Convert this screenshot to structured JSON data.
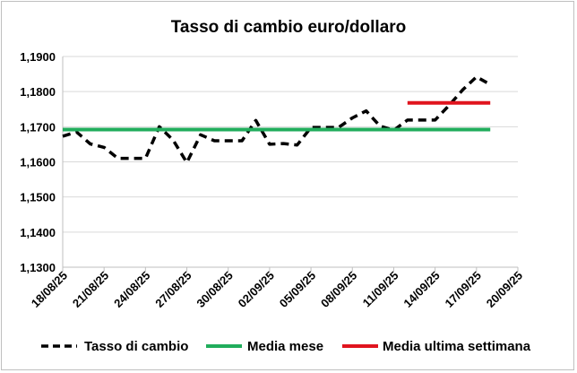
{
  "chart_data": {
    "type": "line",
    "title": "Tasso di cambio euro/dollaro",
    "xlabel": "",
    "ylabel": "",
    "ylim": [
      1.13,
      1.19
    ],
    "yticks": [
      "1,1300",
      "1,1400",
      "1,1500",
      "1,1600",
      "1,1700",
      "1,1800",
      "1,1900"
    ],
    "ytick_values": [
      1.13,
      1.14,
      1.15,
      1.16,
      1.17,
      1.18,
      1.19
    ],
    "xlim": [
      "2025-08-18",
      "2025-09-20"
    ],
    "xticks": [
      "18/08/25",
      "21/08/25",
      "24/08/25",
      "27/08/25",
      "30/08/25",
      "02/09/25",
      "05/09/25",
      "08/09/25",
      "11/09/25",
      "14/09/25",
      "17/09/25",
      "20/09/25"
    ],
    "xtick_dates": [
      "2025-08-18",
      "2025-08-21",
      "2025-08-24",
      "2025-08-27",
      "2025-08-30",
      "2025-09-02",
      "2025-09-05",
      "2025-09-08",
      "2025-09-11",
      "2025-09-14",
      "2025-09-17",
      "2025-09-20"
    ],
    "grid": {
      "horizontal": true,
      "vertical": false
    },
    "legend_position": "bottom",
    "series": [
      {
        "name": "Tasso di cambio",
        "color": "#000000",
        "style": "dashed",
        "points": [
          [
            "2025-08-18",
            1.1673
          ],
          [
            "2025-08-19",
            1.1685
          ],
          [
            "2025-08-20",
            1.1651
          ],
          [
            "2025-08-21",
            1.1641
          ],
          [
            "2025-08-22",
            1.161
          ],
          [
            "2025-08-23",
            1.161
          ],
          [
            "2025-08-24",
            1.161
          ],
          [
            "2025-08-25",
            1.17
          ],
          [
            "2025-08-26",
            1.1662
          ],
          [
            "2025-08-27",
            1.1598
          ],
          [
            "2025-08-28",
            1.1677
          ],
          [
            "2025-08-29",
            1.166
          ],
          [
            "2025-08-30",
            1.166
          ],
          [
            "2025-08-31",
            1.166
          ],
          [
            "2025-09-01",
            1.1718
          ],
          [
            "2025-09-02",
            1.165
          ],
          [
            "2025-09-03",
            1.1652
          ],
          [
            "2025-09-04",
            1.1648
          ],
          [
            "2025-09-05",
            1.1698
          ],
          [
            "2025-09-06",
            1.1698
          ],
          [
            "2025-09-07",
            1.1698
          ],
          [
            "2025-09-08",
            1.1725
          ],
          [
            "2025-09-09",
            1.1745
          ],
          [
            "2025-09-10",
            1.1702
          ],
          [
            "2025-09-11",
            1.169
          ],
          [
            "2025-09-12",
            1.1719
          ],
          [
            "2025-09-13",
            1.1719
          ],
          [
            "2025-09-14",
            1.1719
          ],
          [
            "2025-09-15",
            1.176
          ],
          [
            "2025-09-16",
            1.1805
          ],
          [
            "2025-09-17",
            1.1842
          ],
          [
            "2025-09-18",
            1.182
          ]
        ]
      },
      {
        "name": "Media mese",
        "color": "#21ad5c",
        "style": "solid",
        "points": [
          [
            "2025-08-18",
            1.1692
          ],
          [
            "2025-09-18",
            1.1692
          ]
        ]
      },
      {
        "name": "Media ultima settimana",
        "color": "#e0141e",
        "style": "solid",
        "points": [
          [
            "2025-09-12",
            1.1768
          ],
          [
            "2025-09-18",
            1.1768
          ]
        ]
      }
    ]
  }
}
